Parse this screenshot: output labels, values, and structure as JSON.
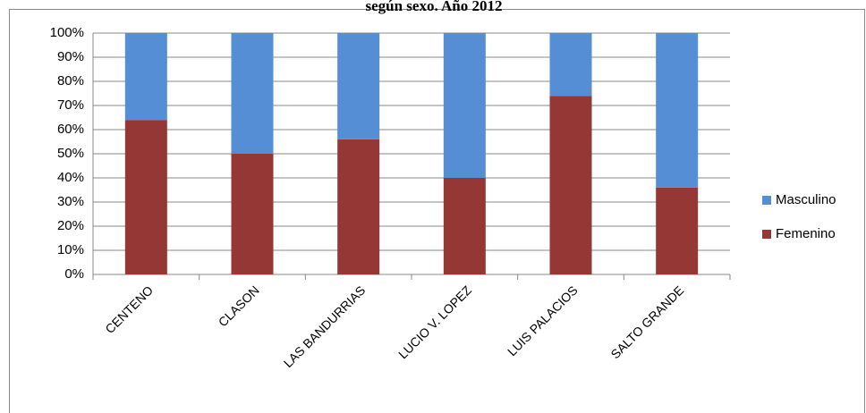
{
  "chart_data": {
    "type": "stacked_bar_100",
    "title": "según sexo. Año 2012",
    "categories": [
      "CENTENO",
      "CLASON",
      "LAS BANDURRIAS",
      "LUCIO V. LOPEZ",
      "LUIS PALACIOS",
      "SALTO GRANDE"
    ],
    "series": [
      {
        "name": "Femenino",
        "color": "#953735",
        "values": [
          64,
          50,
          56,
          40,
          74,
          36
        ]
      },
      {
        "name": "Masculino",
        "color": "#558ed5",
        "values": [
          36,
          50,
          44,
          60,
          26,
          64
        ]
      }
    ],
    "ylim": [
      0,
      100
    ],
    "yticks": [
      {
        "value": 0,
        "label": "0%"
      },
      {
        "value": 10,
        "label": "10%"
      },
      {
        "value": 20,
        "label": "20%"
      },
      {
        "value": 30,
        "label": "30%"
      },
      {
        "value": 40,
        "label": "40%"
      },
      {
        "value": 50,
        "label": "50%"
      },
      {
        "value": 60,
        "label": "60%"
      },
      {
        "value": 70,
        "label": "70%"
      },
      {
        "value": 80,
        "label": "80%"
      },
      {
        "value": 90,
        "label": "90%"
      },
      {
        "value": 100,
        "label": "100%"
      }
    ],
    "grid": true,
    "legend": "right"
  }
}
